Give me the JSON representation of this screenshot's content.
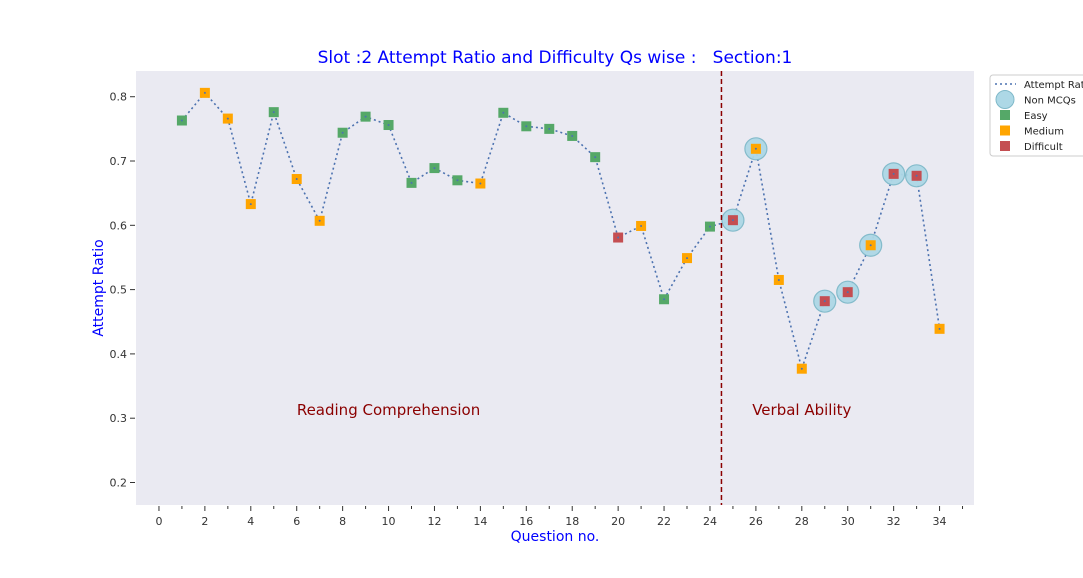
{
  "chart_data": {
    "type": "scatter",
    "title": "Slot :2 Attempt Ratio and Difficulty Qs wise :   Section:1",
    "xlabel": "Question no.",
    "ylabel": "Attempt Ratio",
    "xlim": [
      -1,
      35.5
    ],
    "ylim": [
      0.165,
      0.84
    ],
    "x_ticks": [
      0,
      2,
      4,
      6,
      8,
      10,
      12,
      14,
      16,
      18,
      20,
      22,
      24,
      26,
      28,
      30,
      32,
      34
    ],
    "x_tick_labels": [
      "0",
      "2",
      "4",
      "6",
      "8",
      "10",
      "12",
      "14",
      "16",
      "18",
      "20",
      "22",
      "24",
      "26",
      "28",
      "30",
      "32",
      "34"
    ],
    "y_ticks": [
      0.2,
      0.3,
      0.4,
      0.5,
      0.6,
      0.7,
      0.8
    ],
    "y_tick_labels": [
      "0.2",
      "0.3",
      "0.4",
      "0.5",
      "0.6",
      "0.7",
      "0.8"
    ],
    "grid": false,
    "legend_position": "top-right, outside plot",
    "legend": [
      {
        "label": "Attempt Rat",
        "kind": "line",
        "color": "#4c72b0"
      },
      {
        "label": "Non MCQs",
        "kind": "circle",
        "color": "#add8e6"
      },
      {
        "label": "Easy",
        "kind": "square",
        "color": "#55a868"
      },
      {
        "label": "Medium",
        "kind": "square",
        "color": "#ffa500"
      },
      {
        "label": "Difficult",
        "kind": "square",
        "color": "#c44e52"
      }
    ],
    "colors": {
      "Easy": "#55a868",
      "Medium": "#ffa500",
      "Difficult": "#c44e52",
      "Non MCQs": "#add8e6",
      "line": "#4c72b0",
      "divider": "#8b0000",
      "annotation": "#8b0000",
      "title": "#0000ff",
      "plot_bg": "#eaeaf2"
    },
    "divider_x": 24.5,
    "annotations": [
      {
        "text": "Reading Comprehension",
        "x": 10,
        "y": 0.305
      },
      {
        "text": "Verbal Ability",
        "x": 28,
        "y": 0.305
      }
    ],
    "points": [
      {
        "x": 1,
        "y": 0.763,
        "difficulty": "Easy",
        "non_mcq": false
      },
      {
        "x": 2,
        "y": 0.806,
        "difficulty": "Medium",
        "non_mcq": false
      },
      {
        "x": 3,
        "y": 0.766,
        "difficulty": "Medium",
        "non_mcq": false
      },
      {
        "x": 4,
        "y": 0.633,
        "difficulty": "Medium",
        "non_mcq": false
      },
      {
        "x": 5,
        "y": 0.776,
        "difficulty": "Easy",
        "non_mcq": false
      },
      {
        "x": 6,
        "y": 0.672,
        "difficulty": "Medium",
        "non_mcq": false
      },
      {
        "x": 7,
        "y": 0.607,
        "difficulty": "Medium",
        "non_mcq": false
      },
      {
        "x": 8,
        "y": 0.744,
        "difficulty": "Easy",
        "non_mcq": false
      },
      {
        "x": 9,
        "y": 0.769,
        "difficulty": "Easy",
        "non_mcq": false
      },
      {
        "x": 10,
        "y": 0.756,
        "difficulty": "Easy",
        "non_mcq": false
      },
      {
        "x": 11,
        "y": 0.666,
        "difficulty": "Easy",
        "non_mcq": false
      },
      {
        "x": 12,
        "y": 0.689,
        "difficulty": "Easy",
        "non_mcq": false
      },
      {
        "x": 13,
        "y": 0.67,
        "difficulty": "Easy",
        "non_mcq": false
      },
      {
        "x": 14,
        "y": 0.665,
        "difficulty": "Medium",
        "non_mcq": false
      },
      {
        "x": 15,
        "y": 0.775,
        "difficulty": "Easy",
        "non_mcq": false
      },
      {
        "x": 16,
        "y": 0.754,
        "difficulty": "Easy",
        "non_mcq": false
      },
      {
        "x": 17,
        "y": 0.75,
        "difficulty": "Easy",
        "non_mcq": false
      },
      {
        "x": 18,
        "y": 0.739,
        "difficulty": "Easy",
        "non_mcq": false
      },
      {
        "x": 19,
        "y": 0.706,
        "difficulty": "Easy",
        "non_mcq": false
      },
      {
        "x": 20,
        "y": 0.581,
        "difficulty": "Difficult",
        "non_mcq": false
      },
      {
        "x": 21,
        "y": 0.599,
        "difficulty": "Medium",
        "non_mcq": false
      },
      {
        "x": 22,
        "y": 0.485,
        "difficulty": "Easy",
        "non_mcq": false
      },
      {
        "x": 23,
        "y": 0.549,
        "difficulty": "Medium",
        "non_mcq": false
      },
      {
        "x": 24,
        "y": 0.598,
        "difficulty": "Easy",
        "non_mcq": false
      },
      {
        "x": 25,
        "y": 0.608,
        "difficulty": "Difficult",
        "non_mcq": true
      },
      {
        "x": 26,
        "y": 0.719,
        "difficulty": "Medium",
        "non_mcq": true
      },
      {
        "x": 27,
        "y": 0.515,
        "difficulty": "Medium",
        "non_mcq": false
      },
      {
        "x": 28,
        "y": 0.377,
        "difficulty": "Medium",
        "non_mcq": false
      },
      {
        "x": 29,
        "y": 0.482,
        "difficulty": "Difficult",
        "non_mcq": true
      },
      {
        "x": 30,
        "y": 0.496,
        "difficulty": "Difficult",
        "non_mcq": true
      },
      {
        "x": 31,
        "y": 0.569,
        "difficulty": "Medium",
        "non_mcq": true
      },
      {
        "x": 32,
        "y": 0.68,
        "difficulty": "Difficult",
        "non_mcq": true
      },
      {
        "x": 33,
        "y": 0.677,
        "difficulty": "Difficult",
        "non_mcq": true
      },
      {
        "x": 34,
        "y": 0.439,
        "difficulty": "Medium",
        "non_mcq": false
      }
    ]
  }
}
